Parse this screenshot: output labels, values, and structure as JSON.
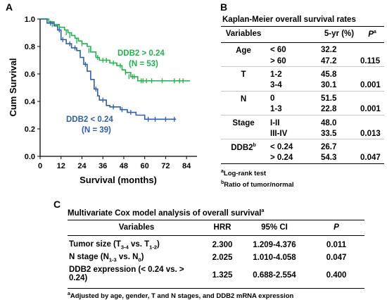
{
  "panels": {
    "a": "A",
    "b": "B",
    "c": "C"
  },
  "chart_data": {
    "type": "line",
    "subtype": "kaplan-meier step",
    "xlabel": "Survival (months)",
    "ylabel": "Cum Survival",
    "xlim": [
      0,
      90
    ],
    "ylim": [
      0,
      1.0
    ],
    "xticks": [
      0,
      12,
      24,
      36,
      48,
      60,
      72,
      84
    ],
    "yticks": [
      "0.0",
      "0.2",
      "0.4",
      "0.6",
      "0.8",
      "1.0"
    ],
    "grid": false,
    "colors": {
      "high": "#22b24c",
      "low": "#2e5fa8"
    },
    "series": [
      {
        "key": "high",
        "label_line1": "DDB2 > 0.24",
        "label_line2": "(N = 53)",
        "color": "#22b24c",
        "steps": [
          [
            0,
            1.0
          ],
          [
            5,
            0.98
          ],
          [
            8,
            0.96
          ],
          [
            11,
            0.94
          ],
          [
            14,
            0.92
          ],
          [
            16,
            0.9
          ],
          [
            18,
            0.88
          ],
          [
            20,
            0.86
          ],
          [
            22,
            0.84
          ],
          [
            24,
            0.82
          ],
          [
            27,
            0.8
          ],
          [
            29,
            0.76
          ],
          [
            32,
            0.72
          ],
          [
            34,
            0.7
          ],
          [
            40,
            0.68
          ],
          [
            44,
            0.66
          ],
          [
            47,
            0.63
          ],
          [
            49,
            0.61
          ],
          [
            52,
            0.58
          ],
          [
            56,
            0.55
          ],
          [
            86,
            0.55
          ]
        ],
        "censor": [
          [
            7,
            0.96
          ],
          [
            10,
            0.94
          ],
          [
            15,
            0.9
          ],
          [
            17,
            0.88
          ],
          [
            21,
            0.84
          ],
          [
            24,
            0.82
          ],
          [
            28,
            0.77
          ],
          [
            33,
            0.72
          ],
          [
            36,
            0.7
          ],
          [
            38,
            0.7
          ],
          [
            42,
            0.68
          ],
          [
            46,
            0.66
          ],
          [
            49,
            0.61
          ],
          [
            51,
            0.58
          ],
          [
            53,
            0.58
          ],
          [
            54,
            0.58
          ],
          [
            58,
            0.55
          ],
          [
            59,
            0.55
          ],
          [
            61,
            0.55
          ],
          [
            64,
            0.55
          ],
          [
            70,
            0.55
          ],
          [
            77,
            0.55
          ],
          [
            80,
            0.55
          ],
          [
            82,
            0.55
          ]
        ]
      },
      {
        "key": "low",
        "label_line1": "DDB2 < 0.24",
        "label_line2": "(N = 39)",
        "color": "#2e5fa8",
        "steps": [
          [
            0,
            1.0
          ],
          [
            4,
            0.97
          ],
          [
            8,
            0.95
          ],
          [
            10,
            0.92
          ],
          [
            12,
            0.85
          ],
          [
            15,
            0.82
          ],
          [
            18,
            0.79
          ],
          [
            21,
            0.77
          ],
          [
            23,
            0.72
          ],
          [
            25,
            0.67
          ],
          [
            27,
            0.62
          ],
          [
            29,
            0.56
          ],
          [
            31,
            0.49
          ],
          [
            33,
            0.44
          ],
          [
            34,
            0.41
          ],
          [
            38,
            0.37
          ],
          [
            40,
            0.36
          ],
          [
            46,
            0.34
          ],
          [
            50,
            0.32
          ],
          [
            55,
            0.3
          ],
          [
            60,
            0.27
          ],
          [
            78,
            0.27
          ]
        ],
        "censor": [
          [
            6,
            0.97
          ],
          [
            11,
            0.92
          ],
          [
            13,
            0.85
          ],
          [
            17,
            0.82
          ],
          [
            20,
            0.79
          ],
          [
            26,
            0.67
          ],
          [
            32,
            0.49
          ],
          [
            36,
            0.41
          ],
          [
            42,
            0.36
          ],
          [
            47,
            0.34
          ],
          [
            52,
            0.32
          ],
          [
            62,
            0.27
          ],
          [
            66,
            0.27
          ],
          [
            72,
            0.27
          ],
          [
            77,
            0.27
          ]
        ]
      }
    ]
  },
  "table_b": {
    "title": "Kaplan-Meier overall survival rates",
    "headers": {
      "variables": "Variables",
      "yr5": "5-yr (%)",
      "p": "P",
      "p_sup": "a"
    },
    "rows": [
      {
        "var": "Age",
        "var_sup": "",
        "sub": "< 60",
        "yr5": "32.2",
        "p": ""
      },
      {
        "var": "",
        "var_sup": "",
        "sub": "> 60",
        "yr5": "47.2",
        "p": "0.115"
      },
      {
        "var": "T",
        "var_sup": "",
        "sub": "1-2",
        "yr5": "45.8",
        "p": ""
      },
      {
        "var": "",
        "var_sup": "",
        "sub": "3-4",
        "yr5": "30.1",
        "p": "0.001"
      },
      {
        "var": "N",
        "var_sup": "",
        "sub": "0",
        "yr5": "51.5",
        "p": ""
      },
      {
        "var": "",
        "var_sup": "",
        "sub": "1-3",
        "yr5": "22.8",
        "p": "0.001"
      },
      {
        "var": "Stage",
        "var_sup": "",
        "sub": "I-II",
        "yr5": "48.0",
        "p": ""
      },
      {
        "var": "",
        "var_sup": "",
        "sub": "III-IV",
        "yr5": "33.5",
        "p": "0.013"
      },
      {
        "var": "DDB2",
        "var_sup": "b",
        "sub": "< 0.24",
        "yr5": "26.7",
        "p": ""
      },
      {
        "var": "",
        "var_sup": "",
        "sub": "> 0.24",
        "yr5": "54.3",
        "p": "0.047"
      }
    ],
    "foot_a_sup": "a",
    "foot_a": "Log-rank test",
    "foot_b_sup": "b",
    "foot_b": "Ratio of tumor/normal"
  },
  "table_c": {
    "title": "Multivariate Cox model analysis of overall survival",
    "title_sup": "a",
    "headers": {
      "variables": "Variables",
      "hrr": "HRR",
      "ci": "95% CI",
      "p": "P"
    },
    "rows": [
      {
        "var_pre": "Tumor size (T",
        "var_sub1": "3-4",
        "var_mid": " vs. T",
        "var_sub2": "1-2",
        "var_post": ")",
        "hrr": "2.300",
        "ci": "1.209-4.376",
        "p": "0.011"
      },
      {
        "var_pre": "N stage (N",
        "var_sub1": "1-3",
        "var_mid": " vs. N",
        "var_sub2": "0",
        "var_post": ")",
        "hrr": "2.025",
        "ci": "1.010-4.058",
        "p": "0.047"
      },
      {
        "var_pre": "DDB2 expression (< 0.24 vs. > 0.24)",
        "var_sub1": "",
        "var_mid": "",
        "var_sub2": "",
        "var_post": "",
        "hrr": "1.325",
        "ci": "0.688-2.554",
        "p": "0.400"
      }
    ],
    "foot_sup": "a",
    "foot": "Adjusted by age, gender, T and N stages, and DDB2 mRNA expression"
  }
}
